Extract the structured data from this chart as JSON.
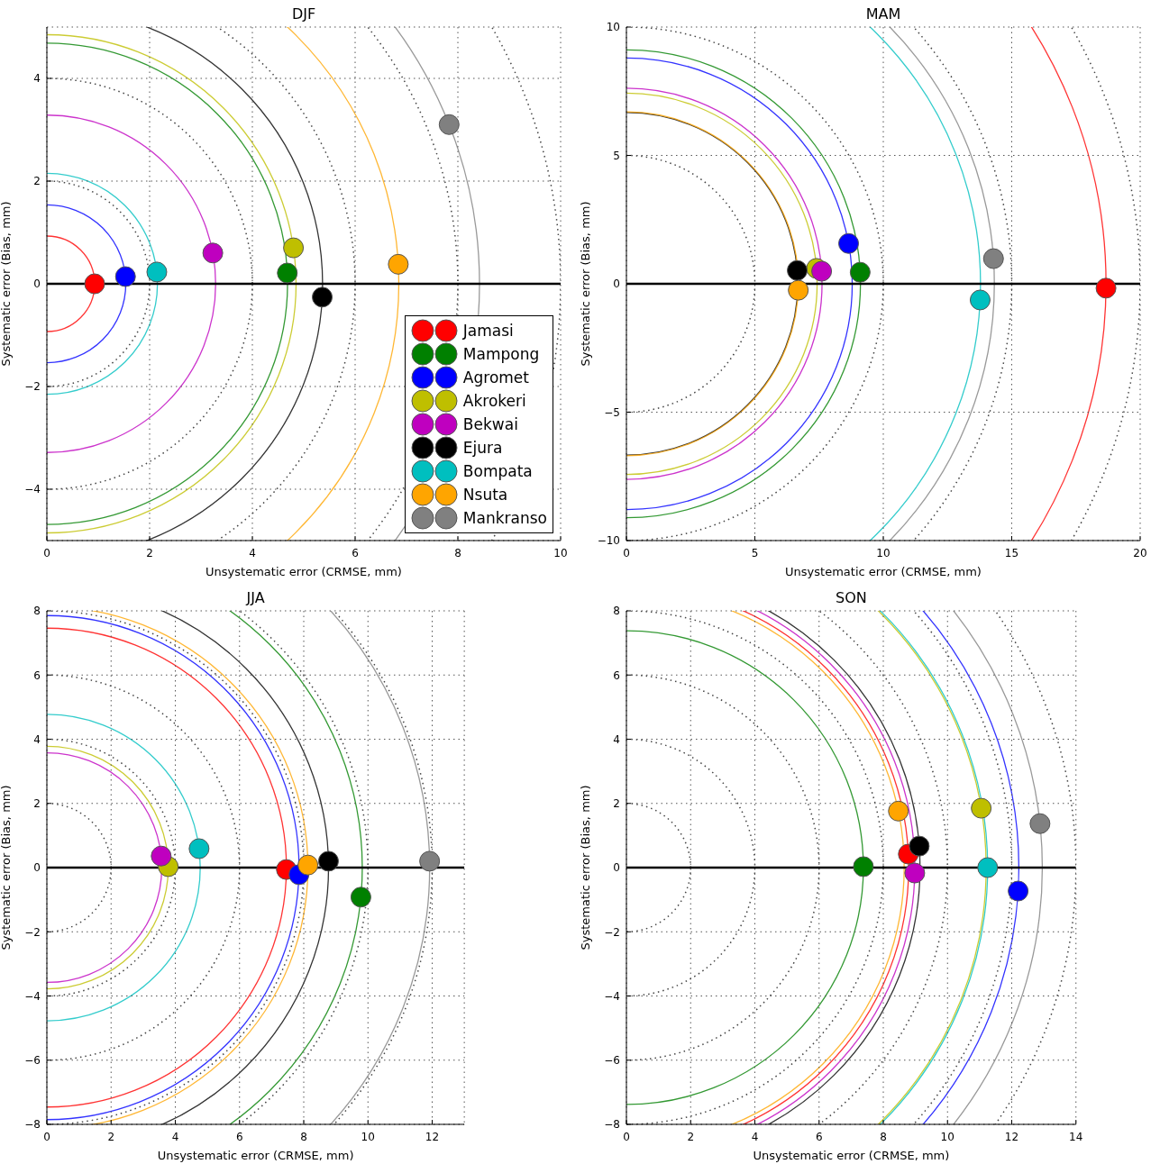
{
  "chart_data": [
    {
      "type": "scatter",
      "title": "DJF",
      "xlabel": "Unsystematic error (CRMSE, mm)",
      "ylabel": "Systematic error (Bias, mm)",
      "xlim": [
        0,
        10
      ],
      "xticks": [
        0,
        2,
        4,
        6,
        8,
        10
      ],
      "ylim": [
        -5,
        5
      ],
      "yticks": [
        -4,
        -2,
        0,
        2,
        4
      ],
      "grid": true,
      "marker": "circle",
      "legend": "bottom right",
      "ref_lines": [
        {
          "axis": "y",
          "value": 0,
          "color": "#000000"
        }
      ],
      "series": [
        {
          "name": "Jamasi",
          "color": "#ff0000",
          "x": [
            0.93
          ],
          "values": [
            0.0
          ]
        },
        {
          "name": "Mampong",
          "color": "#008000",
          "x": [
            4.68
          ],
          "values": [
            0.21
          ]
        },
        {
          "name": "Agromet",
          "color": "#0000ff",
          "x": [
            1.53
          ],
          "values": [
            0.14
          ]
        },
        {
          "name": "Akrokeri",
          "color": "#bfbf00",
          "x": [
            4.8
          ],
          "values": [
            0.7
          ]
        },
        {
          "name": "Bekwai",
          "color": "#bf00bf",
          "x": [
            3.23
          ],
          "values": [
            0.6
          ]
        },
        {
          "name": "Ejura",
          "color": "#000000",
          "x": [
            5.36
          ],
          "values": [
            -0.26
          ]
        },
        {
          "name": "Bompata",
          "color": "#00bfbf",
          "x": [
            2.14
          ],
          "values": [
            0.23
          ]
        },
        {
          "name": "Nsuta",
          "color": "#ffa500",
          "x": [
            6.84
          ],
          "values": [
            0.38
          ]
        },
        {
          "name": "Mankranso",
          "color": "#808080",
          "x": [
            7.83
          ],
          "values": [
            3.1
          ]
        }
      ]
    },
    {
      "type": "scatter",
      "title": "MAM",
      "xlabel": "Unsystematic error (CRMSE, mm)",
      "ylabel": "Systematic error (Bias, mm)",
      "xlim": [
        0,
        20
      ],
      "xticks": [
        0,
        5,
        10,
        15,
        20
      ],
      "ylim": [
        -10,
        10
      ],
      "yticks": [
        -10,
        -5,
        0,
        5,
        10
      ],
      "grid": true,
      "marker": "circle",
      "ref_lines": [
        {
          "axis": "y",
          "value": 0,
          "color": "#000000"
        }
      ],
      "series": [
        {
          "color": "#ff0000",
          "x": [
            18.67
          ],
          "values": [
            -0.17
          ]
        },
        {
          "color": "#008000",
          "x": [
            9.1
          ],
          "values": [
            0.45
          ]
        },
        {
          "color": "#0000ff",
          "x": [
            8.65
          ],
          "values": [
            1.57
          ]
        },
        {
          "color": "#bfbf00",
          "x": [
            7.4
          ],
          "values": [
            0.6
          ]
        },
        {
          "color": "#bf00bf",
          "x": [
            7.6
          ],
          "values": [
            0.49
          ]
        },
        {
          "color": "#000000",
          "x": [
            6.65
          ],
          "values": [
            0.52
          ]
        },
        {
          "color": "#00bfbf",
          "x": [
            13.77
          ],
          "values": [
            -0.63
          ]
        },
        {
          "color": "#ffa500",
          "x": [
            6.69
          ],
          "values": [
            -0.25
          ]
        },
        {
          "color": "#808080",
          "x": [
            14.29
          ],
          "values": [
            0.98
          ]
        }
      ]
    },
    {
      "type": "scatter",
      "title": "JJA",
      "xlabel": "Unsystematic error (CRMSE, mm)",
      "ylabel": "Systematic error (Bias, mm)",
      "xlim": [
        0,
        13
      ],
      "xticks": [
        0,
        2,
        4,
        6,
        8,
        10,
        12
      ],
      "ylim": [
        -8,
        8
      ],
      "yticks": [
        -8,
        -6,
        -4,
        -2,
        0,
        2,
        4,
        6,
        8
      ],
      "grid": true,
      "marker": "circle",
      "ref_lines": [
        {
          "axis": "y",
          "value": 0,
          "color": "#000000"
        }
      ],
      "series": [
        {
          "color": "#ff0000",
          "x": [
            7.46
          ],
          "values": [
            -0.06
          ]
        },
        {
          "color": "#008000",
          "x": [
            9.78
          ],
          "values": [
            -0.92
          ]
        },
        {
          "color": "#0000ff",
          "x": [
            7.85
          ],
          "values": [
            -0.22
          ]
        },
        {
          "color": "#bfbf00",
          "x": [
            3.78
          ],
          "values": [
            0.03
          ]
        },
        {
          "color": "#bf00bf",
          "x": [
            3.56
          ],
          "values": [
            0.36
          ]
        },
        {
          "color": "#000000",
          "x": [
            8.77
          ],
          "values": [
            0.2
          ]
        },
        {
          "color": "#00bfbf",
          "x": [
            4.74
          ],
          "values": [
            0.59
          ]
        },
        {
          "color": "#ffa500",
          "x": [
            8.13
          ],
          "values": [
            0.08
          ]
        },
        {
          "color": "#808080",
          "x": [
            11.92
          ],
          "values": [
            0.2
          ]
        }
      ]
    },
    {
      "type": "scatter",
      "title": "SON",
      "xlabel": "Unsystematic error (CRMSE, mm)",
      "ylabel": "Systematic error (Bias, mm)",
      "xlim": [
        0,
        14
      ],
      "xticks": [
        0,
        2,
        4,
        6,
        8,
        10,
        12,
        14
      ],
      "ylim": [
        -8,
        8
      ],
      "yticks": [
        -8,
        -6,
        -4,
        -2,
        0,
        2,
        4,
        6,
        8
      ],
      "grid": true,
      "marker": "circle",
      "ref_lines": [
        {
          "axis": "y",
          "value": 0,
          "color": "#000000"
        }
      ],
      "series": [
        {
          "color": "#ff0000",
          "x": [
            8.78
          ],
          "values": [
            0.42
          ]
        },
        {
          "color": "#008000",
          "x": [
            7.38
          ],
          "values": [
            0.03
          ]
        },
        {
          "color": "#0000ff",
          "x": [
            12.2
          ],
          "values": [
            -0.73
          ]
        },
        {
          "color": "#bfbf00",
          "x": [
            11.05
          ],
          "values": [
            1.85
          ]
        },
        {
          "color": "#bf00bf",
          "x": [
            8.98
          ],
          "values": [
            -0.17
          ]
        },
        {
          "color": "#000000",
          "x": [
            9.12
          ],
          "values": [
            0.67
          ]
        },
        {
          "color": "#00bfbf",
          "x": [
            11.25
          ],
          "values": [
            0.0
          ]
        },
        {
          "color": "#ffa500",
          "x": [
            8.47
          ],
          "values": [
            1.76
          ]
        },
        {
          "color": "#808080",
          "x": [
            12.88
          ],
          "values": [
            1.37
          ]
        }
      ]
    }
  ]
}
